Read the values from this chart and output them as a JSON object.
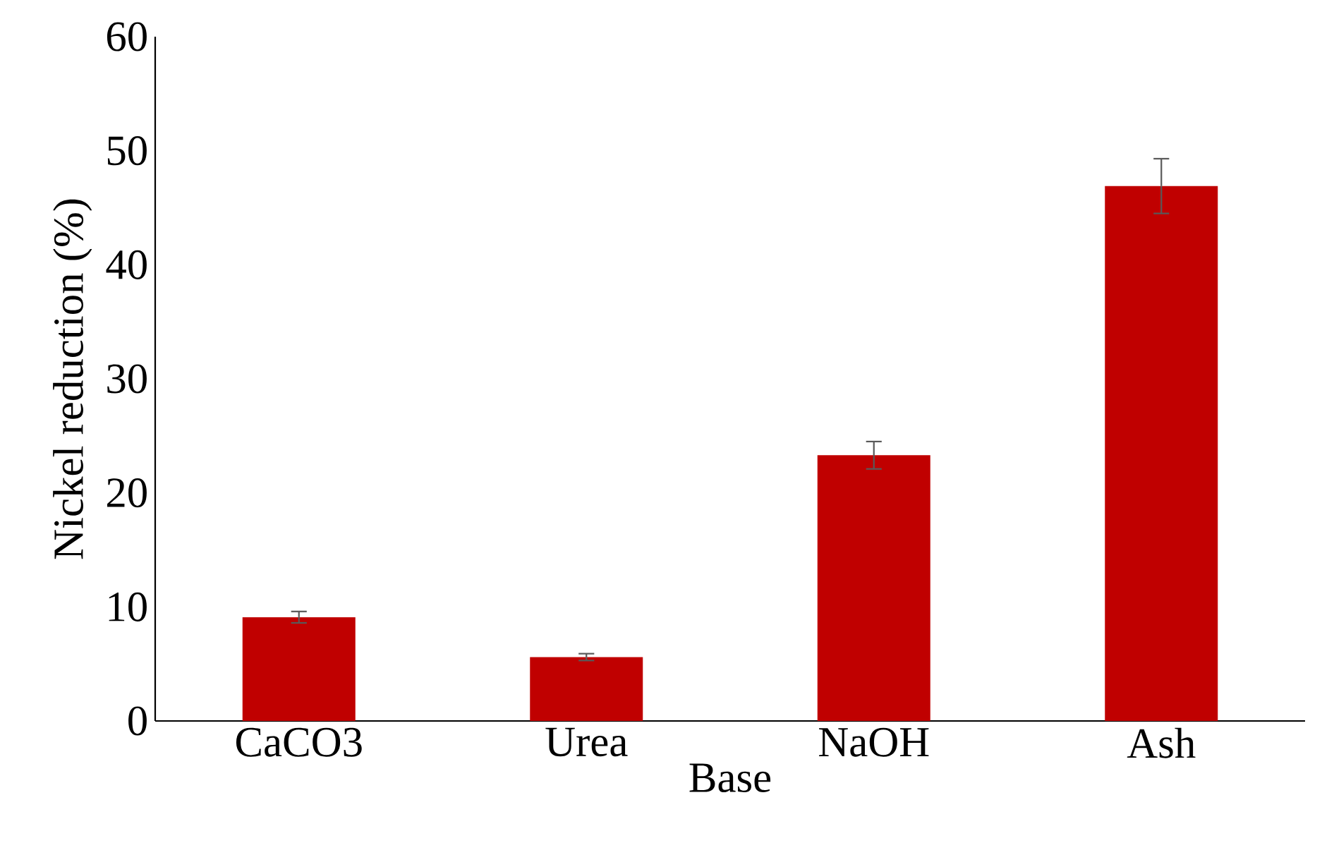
{
  "chart_data": {
    "type": "bar",
    "xlabel": "Base",
    "ylabel": "Nickel reduction (%)",
    "categories": [
      "CaCO3",
      "Urea",
      "NaOH",
      "Ash"
    ],
    "values": [
      9.1,
      5.6,
      23.3,
      46.9
    ],
    "errors": [
      0.5,
      0.3,
      1.2,
      2.4
    ],
    "color": "#c00000",
    "ylim": [
      0,
      60
    ],
    "yticks": [
      0,
      10,
      20,
      30,
      40,
      50,
      60
    ],
    "grid": false
  }
}
